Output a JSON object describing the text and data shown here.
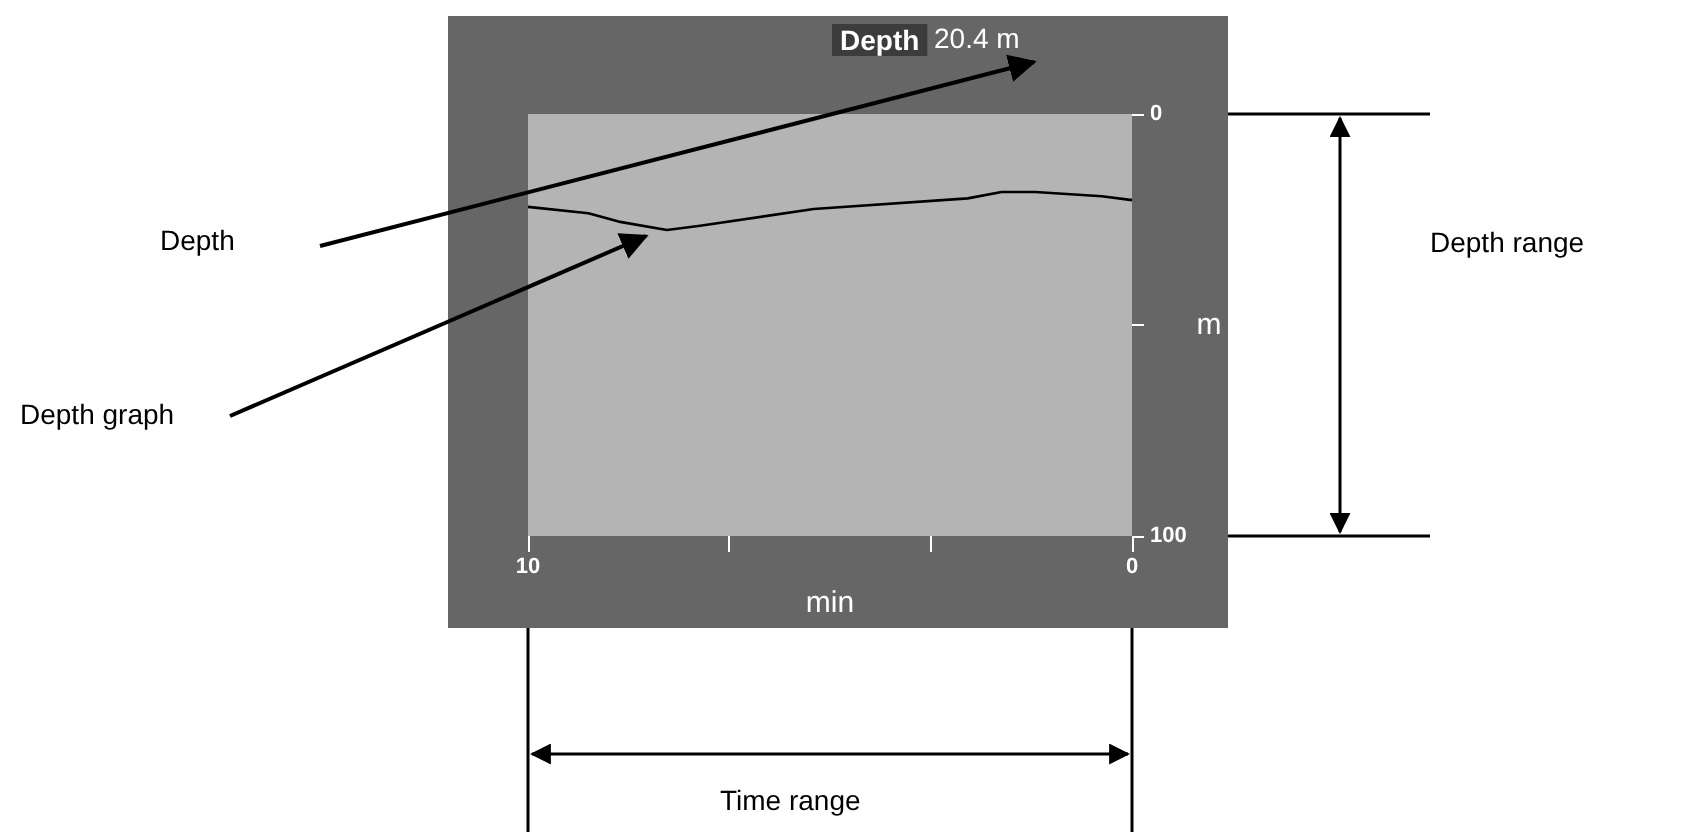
{
  "chart_data": {
    "type": "line",
    "title": "Depth",
    "xlabel": "min",
    "ylabel": "m",
    "x": [
      10,
      9,
      8.5,
      7.7,
      7.15,
      5.27,
      2.72,
      2.16,
      1.6,
      0.5,
      0
    ],
    "series": [
      {
        "color": "#000000",
        "values": [
          22,
          23.5,
          25.5,
          27.5,
          26.5,
          22.5,
          20,
          18.5,
          18.5,
          19.5,
          20.4
        ]
      }
    ],
    "xlim": [
      10,
      0
    ],
    "xticks": [
      10,
      {
        "value": 6.67,
        "label": null
      },
      {
        "value": 3.33,
        "label": null
      },
      0
    ],
    "ylim": [
      100,
      0
    ],
    "yticks": [
      0,
      {
        "value": 50,
        "label": null
      },
      100
    ],
    "annotations": [
      "20.4 m",
      "Depth",
      "Depth graph",
      "Depth range",
      "Time range"
    ],
    "grid": false,
    "marker": "none",
    "line_style": "solid"
  }
}
